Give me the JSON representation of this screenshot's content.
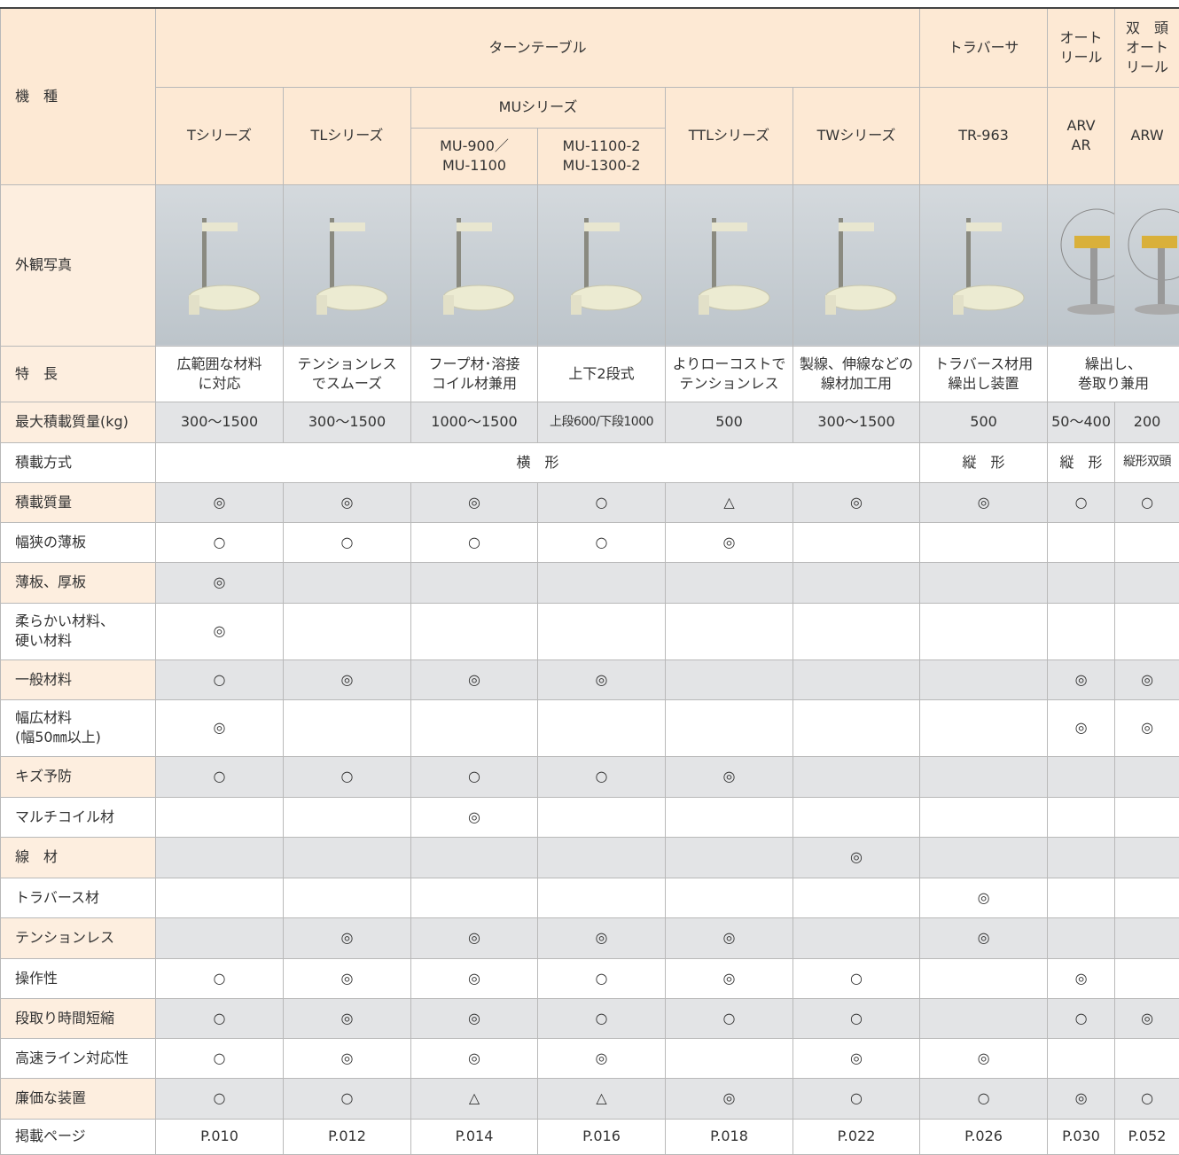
{
  "header": {
    "model_label": "機　種",
    "groups": [
      "ターンテーブル",
      "トラバーサ",
      "オート\nリール",
      "双　頭\nオート\nリール"
    ],
    "models": [
      "Tシリーズ",
      "TLシリーズ",
      "MUシリーズ",
      "MU-900／\nMU-1100",
      "MU-1100-2\nMU-1300-2",
      "TTLシリーズ",
      "TWシリーズ",
      "TR-963",
      "ARV\nAR",
      "ARW"
    ]
  },
  "rows": [
    {
      "label": "外観写真"
    },
    {
      "label": "特　長",
      "cells": [
        "広範囲な材料\nに対応",
        "テンションレス\nでスムーズ",
        "フープ材･溶接\nコイル材兼用",
        "上下2段式",
        "よりローコストで\nテンションレス",
        "製線、伸線などの\n線材加工用",
        "トラバース材用\n繰出し装置",
        "繰出し、\n巻取り兼用"
      ]
    },
    {
      "label": "最大積載質量(kg)",
      "cells": [
        "300〜1500",
        "300〜1500",
        "1000〜1500",
        "上段600/下段1000",
        "500",
        "300〜1500",
        "500",
        "50〜400",
        "200"
      ]
    },
    {
      "label": "積載方式",
      "cells": [
        "横　形",
        "縦　形",
        "縦　形",
        "縦形双頭"
      ]
    },
    {
      "label": "積載質量",
      "cells": [
        "◎",
        "◎",
        "◎",
        "○",
        "△",
        "◎",
        "◎",
        "○",
        "○"
      ]
    },
    {
      "label": "幅狭の薄板",
      "cells": [
        "○",
        "○",
        "○",
        "○",
        "◎",
        null,
        null,
        null,
        null
      ]
    },
    {
      "label": "薄板、厚板",
      "cells": [
        "◎",
        null,
        null,
        null,
        null,
        null,
        null,
        null,
        null
      ]
    },
    {
      "label": "柔らかい材料、\n硬い材料",
      "cells": [
        "◎",
        null,
        null,
        null,
        null,
        null,
        null,
        null,
        null
      ]
    },
    {
      "label": "一般材料",
      "cells": [
        "○",
        "◎",
        "◎",
        "◎",
        null,
        null,
        null,
        "◎",
        "◎"
      ]
    },
    {
      "label": "幅広材料\n(幅50㎜以上)",
      "cells": [
        "◎",
        null,
        null,
        null,
        null,
        null,
        null,
        "◎",
        "◎"
      ]
    },
    {
      "label": "キズ予防",
      "cells": [
        "○",
        "○",
        "○",
        "○",
        "◎",
        null,
        null,
        null,
        null
      ]
    },
    {
      "label": "マルチコイル材",
      "cells": [
        null,
        null,
        "◎",
        null,
        null,
        null,
        null,
        null,
        null
      ]
    },
    {
      "label": "線　材",
      "cells": [
        null,
        null,
        null,
        null,
        null,
        "◎",
        null,
        null,
        null
      ]
    },
    {
      "label": "トラバース材",
      "cells": [
        null,
        null,
        null,
        null,
        null,
        null,
        "◎",
        null,
        null
      ]
    },
    {
      "label": "テンションレス",
      "cells": [
        null,
        "◎",
        "◎",
        "◎",
        "◎",
        null,
        "◎",
        null,
        null
      ]
    },
    {
      "label": "操作性",
      "cells": [
        "○",
        "◎",
        "◎",
        "○",
        "◎",
        "○",
        null,
        "◎",
        null
      ]
    },
    {
      "label": "段取り時間短縮",
      "cells": [
        "○",
        "◎",
        "◎",
        "○",
        "○",
        "○",
        null,
        "○",
        "◎"
      ]
    },
    {
      "label": "高速ライン対応性",
      "cells": [
        "○",
        "◎",
        "◎",
        "◎",
        null,
        "◎",
        "◎",
        null,
        null
      ]
    },
    {
      "label": "廉価な装置",
      "cells": [
        "○",
        "○",
        "△",
        "△",
        "◎",
        "○",
        "○",
        "◎",
        "○"
      ]
    },
    {
      "label": "掲載ページ",
      "cells": [
        "P.010",
        "P.012",
        "P.014",
        "P.016",
        "P.018",
        "P.022",
        "P.026",
        "P.030",
        "P.052"
      ]
    }
  ]
}
